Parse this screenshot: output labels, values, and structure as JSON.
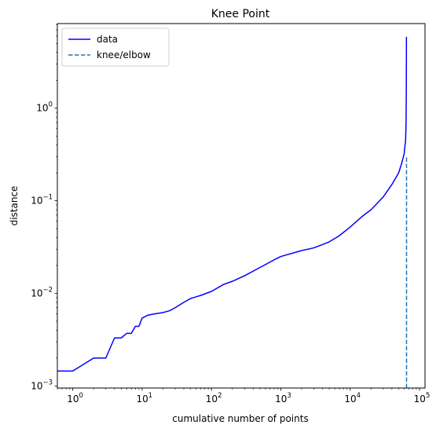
{
  "chart_data": {
    "type": "line",
    "title": "Knee Point",
    "xlabel": "cumulative number of points",
    "ylabel": "distance",
    "xscale": "log",
    "yscale": "log",
    "xlim": [
      0.6,
      120000
    ],
    "ylim": [
      0.00095,
      8.2
    ],
    "grid": false,
    "legend_position": "top-left",
    "x_ticks": [
      {
        "value": 1,
        "label": "10",
        "exp": "0"
      },
      {
        "value": 10,
        "label": "10",
        "exp": "1"
      },
      {
        "value": 100,
        "label": "10",
        "exp": "2"
      },
      {
        "value": 1000,
        "label": "10",
        "exp": "3"
      },
      {
        "value": 10000,
        "label": "10",
        "exp": "4"
      },
      {
        "value": 100000,
        "label": "10",
        "exp": "5"
      }
    ],
    "y_ticks": [
      {
        "value": 0.001,
        "label": "10",
        "exp": "−3"
      },
      {
        "value": 0.01,
        "label": "10",
        "exp": "−2"
      },
      {
        "value": 0.1,
        "label": "10",
        "exp": "−1"
      },
      {
        "value": 1,
        "label": "10",
        "exp": "0"
      }
    ],
    "series": [
      {
        "name": "data",
        "color": "#0000ff",
        "style": "solid",
        "points": [
          [
            0.6,
            0.00145
          ],
          [
            1,
            0.00145
          ],
          [
            2,
            0.002
          ],
          [
            3,
            0.002
          ],
          [
            4,
            0.0033
          ],
          [
            5,
            0.0033
          ],
          [
            6,
            0.0037
          ],
          [
            7,
            0.0037
          ],
          [
            8,
            0.0044
          ],
          [
            9,
            0.0044
          ],
          [
            10,
            0.0054
          ],
          [
            12,
            0.0058
          ],
          [
            15,
            0.006
          ],
          [
            20,
            0.0062
          ],
          [
            25,
            0.0065
          ],
          [
            30,
            0.007
          ],
          [
            40,
            0.008
          ],
          [
            50,
            0.0088
          ],
          [
            70,
            0.0095
          ],
          [
            100,
            0.0105
          ],
          [
            150,
            0.0125
          ],
          [
            200,
            0.0135
          ],
          [
            300,
            0.0155
          ],
          [
            500,
            0.019
          ],
          [
            800,
            0.023
          ],
          [
            1000,
            0.025
          ],
          [
            2000,
            0.029
          ],
          [
            3000,
            0.031
          ],
          [
            5000,
            0.036
          ],
          [
            7000,
            0.042
          ],
          [
            10000,
            0.052
          ],
          [
            15000,
            0.068
          ],
          [
            20000,
            0.08
          ],
          [
            30000,
            0.11
          ],
          [
            40000,
            0.15
          ],
          [
            50000,
            0.2
          ],
          [
            55000,
            0.25
          ],
          [
            60000,
            0.32
          ],
          [
            63000,
            0.45
          ],
          [
            64000,
            0.7
          ],
          [
            64500,
            1.5
          ],
          [
            64800,
            5.9
          ]
        ]
      },
      {
        "name": "knee/elbow",
        "color": "#1f77b4",
        "style": "dashed",
        "points": [
          [
            65000,
            0.00095
          ],
          [
            65000,
            0.3
          ]
        ]
      }
    ]
  }
}
